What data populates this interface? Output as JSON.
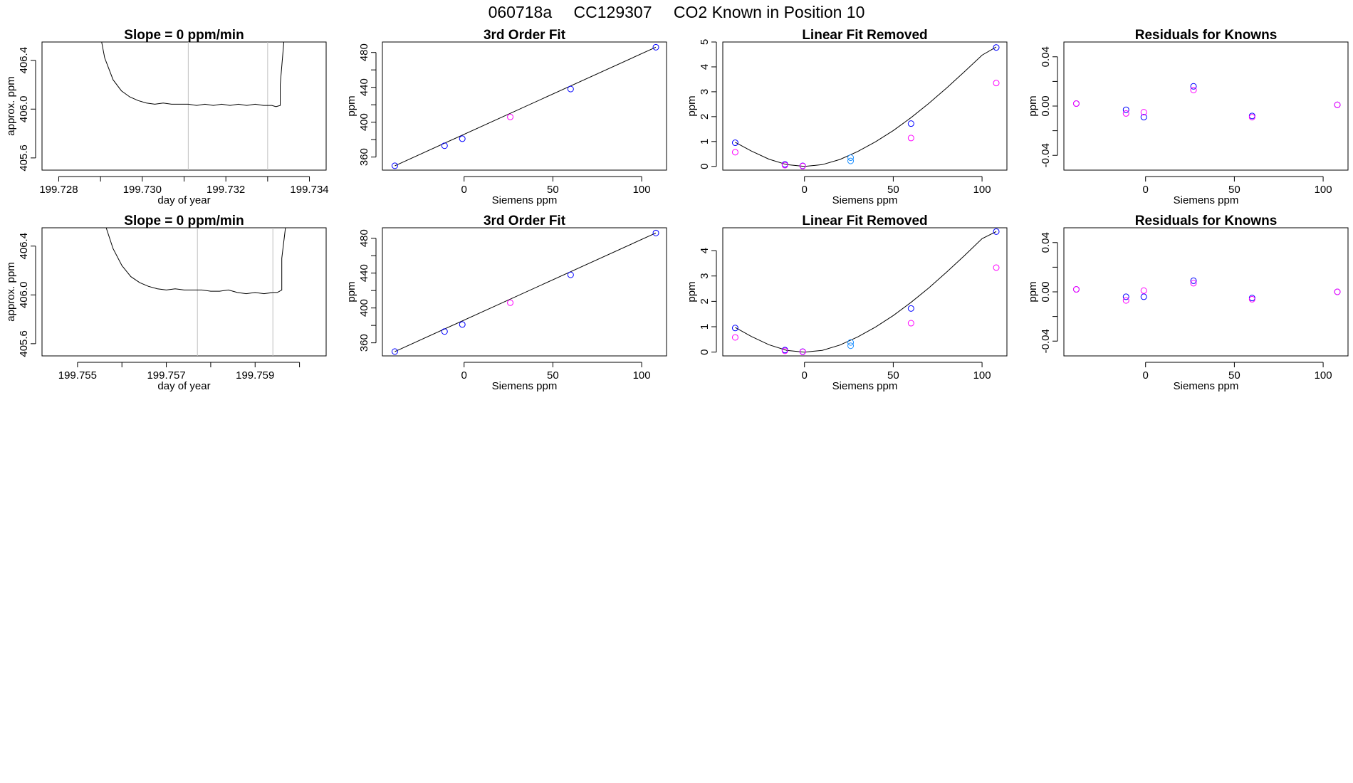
{
  "page": {
    "title_parts": [
      "060718a",
      "CC129307",
      "CO2 Known in Position  10"
    ]
  },
  "colors": {
    "line": "#000000",
    "frame": "#000000",
    "window_marker": "#bfbfbf",
    "known_blue": "#0000ff",
    "known_magenta": "#ff00ff",
    "known_cyan": "#1e90ff",
    "known_purple": "#8b00ff"
  },
  "chart_data": [
    {
      "type": "line",
      "title": "Slope =  0  ppm/min",
      "xlabel": "day of year",
      "ylabel": "approx. ppm",
      "xlim": [
        199.7276,
        199.7344
      ],
      "ylim": [
        405.5,
        406.55
      ],
      "xticks": [
        199.728,
        199.729,
        199.73,
        199.731,
        199.732,
        199.733,
        199.734
      ],
      "xticklabels": [
        "199.728",
        "",
        "199.730",
        "",
        "199.732",
        "",
        "199.734"
      ],
      "yticks": [
        405.6,
        406.0,
        406.4
      ],
      "yticklabels": [
        "405.6",
        "406.0",
        "406.4"
      ],
      "window_markers": [
        199.7311,
        199.733
      ],
      "x": [
        199.729,
        199.7291,
        199.7293,
        199.7295,
        199.7297,
        199.7299,
        199.7301,
        199.7303,
        199.7305,
        199.7307,
        199.7309,
        199.7311,
        199.7313,
        199.7315,
        199.7317,
        199.7319,
        199.7321,
        199.7323,
        199.7325,
        199.7327,
        199.7329,
        199.7331,
        199.7332,
        199.7333,
        199.7333,
        199.7334
      ],
      "y": [
        406.6,
        406.42,
        406.24,
        406.15,
        406.1,
        406.07,
        406.05,
        406.04,
        406.05,
        406.04,
        406.04,
        406.04,
        406.03,
        406.04,
        406.03,
        406.04,
        406.03,
        406.04,
        406.03,
        406.04,
        406.03,
        406.03,
        406.02,
        406.03,
        406.2,
        406.6
      ]
    },
    {
      "type": "scatter",
      "title": "3rd Order Fit",
      "xlabel": "Siemens ppm",
      "ylabel": "ppm",
      "xlim": [
        -46,
        114
      ],
      "ylim": [
        345,
        492
      ],
      "xticks": [
        0,
        50,
        100
      ],
      "xticklabels": [
        "0",
        "50",
        "100"
      ],
      "yticks": [
        340,
        360,
        380,
        400,
        420,
        440,
        460,
        480
      ],
      "yticklabels": [
        "",
        "360",
        "",
        "400",
        "",
        "440",
        "",
        "480"
      ],
      "fit": {
        "x": [
          -39,
          108
        ],
        "y": [
          350,
          486
        ]
      },
      "series": [
        {
          "color_key": "known_blue",
          "x": [
            -39,
            -11,
            -1,
            60,
            108
          ],
          "y": [
            350,
            373,
            381,
            438,
            486
          ]
        },
        {
          "color_key": "known_magenta",
          "x": [
            26
          ],
          "y": [
            406
          ]
        }
      ]
    },
    {
      "type": "scatter",
      "title": "Linear Fit Removed",
      "xlabel": "Siemens ppm",
      "ylabel": "ppm",
      "xlim": [
        -46,
        114
      ],
      "ylim": [
        -0.15,
        5.0
      ],
      "xticks": [
        0,
        50,
        100
      ],
      "xticklabels": [
        "0",
        "50",
        "100"
      ],
      "yticks": [
        0,
        1,
        2,
        3,
        4,
        5
      ],
      "yticklabels": [
        "0",
        "1",
        "2",
        "3",
        "4",
        "5"
      ],
      "fit": {
        "x": [
          -39,
          -30,
          -20,
          -10,
          0,
          10,
          20,
          30,
          40,
          50,
          60,
          70,
          80,
          90,
          100,
          108
        ],
        "y": [
          0.97,
          0.62,
          0.29,
          0.07,
          0.0,
          0.07,
          0.28,
          0.6,
          0.99,
          1.44,
          1.96,
          2.53,
          3.15,
          3.8,
          4.47,
          4.8
        ]
      },
      "series": [
        {
          "color_key": "known_blue",
          "x": [
            -39,
            -11,
            -1,
            60,
            108
          ],
          "y": [
            0.95,
            0.08,
            0.02,
            1.72,
            4.78
          ]
        },
        {
          "color_key": "known_magenta",
          "x": [
            -39,
            -11,
            -1,
            60,
            108
          ],
          "y": [
            0.57,
            0.05,
            0.01,
            1.14,
            3.35
          ]
        },
        {
          "color_key": "known_cyan",
          "x": [
            26,
            26
          ],
          "y": [
            0.35,
            0.22
          ]
        }
      ]
    },
    {
      "type": "scatter",
      "title": "Residuals for Knowns",
      "xlabel": "Siemens ppm",
      "ylabel": "ppm",
      "xlim": [
        -46,
        114
      ],
      "ylim": [
        -0.052,
        0.052
      ],
      "xticks": [
        0,
        50,
        100
      ],
      "xticklabels": [
        "0",
        "50",
        "100"
      ],
      "yticks": [
        -0.04,
        -0.02,
        0.0,
        0.02,
        0.04
      ],
      "yticklabels": [
        "-0.04",
        "",
        "0.00",
        "",
        "0.04"
      ],
      "series": [
        {
          "color_key": "known_blue",
          "x": [
            -39,
            -11,
            -1,
            27,
            60,
            108
          ],
          "y": [
            0.002,
            -0.003,
            -0.009,
            0.016,
            -0.008,
            0.001
          ]
        },
        {
          "color_key": "known_magenta",
          "x": [
            -39,
            -11,
            -1,
            27,
            60,
            108
          ],
          "y": [
            0.002,
            -0.006,
            -0.005,
            0.013,
            -0.009,
            0.001
          ]
        }
      ]
    },
    {
      "type": "line",
      "title": "Slope =  0  ppm/min",
      "xlabel": "day of year",
      "ylabel": "approx. ppm",
      "xlim": [
        199.7542,
        199.7606
      ],
      "ylim": [
        405.5,
        406.55
      ],
      "xticks": [
        199.755,
        199.756,
        199.757,
        199.758,
        199.759,
        199.76
      ],
      "xticklabels": [
        "199.755",
        "",
        "199.757",
        "",
        "199.759",
        ""
      ],
      "yticks": [
        405.6,
        406.0,
        406.4
      ],
      "yticklabels": [
        "405.6",
        "406.0",
        "406.4"
      ],
      "window_markers": [
        199.7577,
        199.7594
      ],
      "x": [
        199.7556,
        199.7558,
        199.756,
        199.7562,
        199.7564,
        199.7566,
        199.7568,
        199.757,
        199.7572,
        199.7574,
        199.7576,
        199.7578,
        199.758,
        199.7582,
        199.7584,
        199.7586,
        199.7588,
        199.759,
        199.7592,
        199.7594,
        199.7595,
        199.7596,
        199.7596,
        199.7597
      ],
      "y": [
        406.6,
        406.38,
        406.24,
        406.15,
        406.1,
        406.07,
        406.05,
        406.04,
        406.05,
        406.04,
        406.04,
        406.04,
        406.03,
        406.03,
        406.04,
        406.02,
        406.01,
        406.02,
        406.01,
        406.02,
        406.02,
        406.04,
        406.3,
        406.6
      ]
    },
    {
      "type": "scatter",
      "title": "3rd Order Fit",
      "xlabel": "Siemens ppm",
      "ylabel": "ppm",
      "xlim": [
        -46,
        114
      ],
      "ylim": [
        345,
        492
      ],
      "xticks": [
        0,
        50,
        100
      ],
      "xticklabels": [
        "0",
        "50",
        "100"
      ],
      "yticks": [
        340,
        360,
        380,
        400,
        420,
        440,
        460,
        480
      ],
      "yticklabels": [
        "",
        "360",
        "",
        "400",
        "",
        "440",
        "",
        "480"
      ],
      "fit": {
        "x": [
          -39,
          108
        ],
        "y": [
          350,
          486
        ]
      },
      "series": [
        {
          "color_key": "known_blue",
          "x": [
            -39,
            -11,
            -1,
            60,
            108
          ],
          "y": [
            350,
            373,
            381,
            438,
            486
          ]
        },
        {
          "color_key": "known_magenta",
          "x": [
            26
          ],
          "y": [
            406
          ]
        }
      ]
    },
    {
      "type": "scatter",
      "title": "Linear Fit Removed",
      "xlabel": "Siemens ppm",
      "ylabel": "ppm",
      "xlim": [
        -46,
        114
      ],
      "ylim": [
        -0.15,
        4.9
      ],
      "xticks": [
        0,
        50,
        100
      ],
      "xticklabels": [
        "0",
        "50",
        "100"
      ],
      "yticks": [
        0,
        1,
        2,
        3,
        4
      ],
      "yticklabels": [
        "0",
        "1",
        "2",
        "3",
        "4"
      ],
      "fit": {
        "x": [
          -39,
          -30,
          -20,
          -10,
          0,
          10,
          20,
          30,
          40,
          50,
          60,
          70,
          80,
          90,
          100,
          108
        ],
        "y": [
          0.97,
          0.62,
          0.29,
          0.07,
          0.0,
          0.07,
          0.28,
          0.6,
          0.99,
          1.44,
          1.96,
          2.53,
          3.15,
          3.8,
          4.47,
          4.75
        ]
      },
      "series": [
        {
          "color_key": "known_blue",
          "x": [
            -39,
            -11,
            -1,
            60,
            108
          ],
          "y": [
            0.95,
            0.08,
            0.02,
            1.72,
            4.75
          ]
        },
        {
          "color_key": "known_magenta",
          "x": [
            -39,
            -11,
            -1,
            60,
            108
          ],
          "y": [
            0.58,
            0.05,
            0.01,
            1.14,
            3.33
          ]
        },
        {
          "color_key": "known_cyan",
          "x": [
            26,
            26
          ],
          "y": [
            0.38,
            0.25
          ]
        }
      ]
    },
    {
      "type": "scatter",
      "title": "Residuals for Knowns",
      "xlabel": "Siemens ppm",
      "ylabel": "ppm",
      "xlim": [
        -46,
        114
      ],
      "ylim": [
        -0.052,
        0.052
      ],
      "xticks": [
        0,
        50,
        100
      ],
      "xticklabels": [
        "0",
        "50",
        "100"
      ],
      "yticks": [
        -0.04,
        -0.02,
        0.0,
        0.02,
        0.04
      ],
      "yticklabels": [
        "-0.04",
        "",
        "0.00",
        "",
        "0.04"
      ],
      "series": [
        {
          "color_key": "known_blue",
          "x": [
            -39,
            -11,
            -1,
            27,
            60,
            108
          ],
          "y": [
            0.002,
            -0.004,
            -0.004,
            0.009,
            -0.005,
            0.0
          ]
        },
        {
          "color_key": "known_magenta",
          "x": [
            -39,
            -11,
            -1,
            27,
            60,
            108
          ],
          "y": [
            0.002,
            -0.007,
            0.001,
            0.007,
            -0.006,
            0.0
          ]
        }
      ]
    }
  ]
}
